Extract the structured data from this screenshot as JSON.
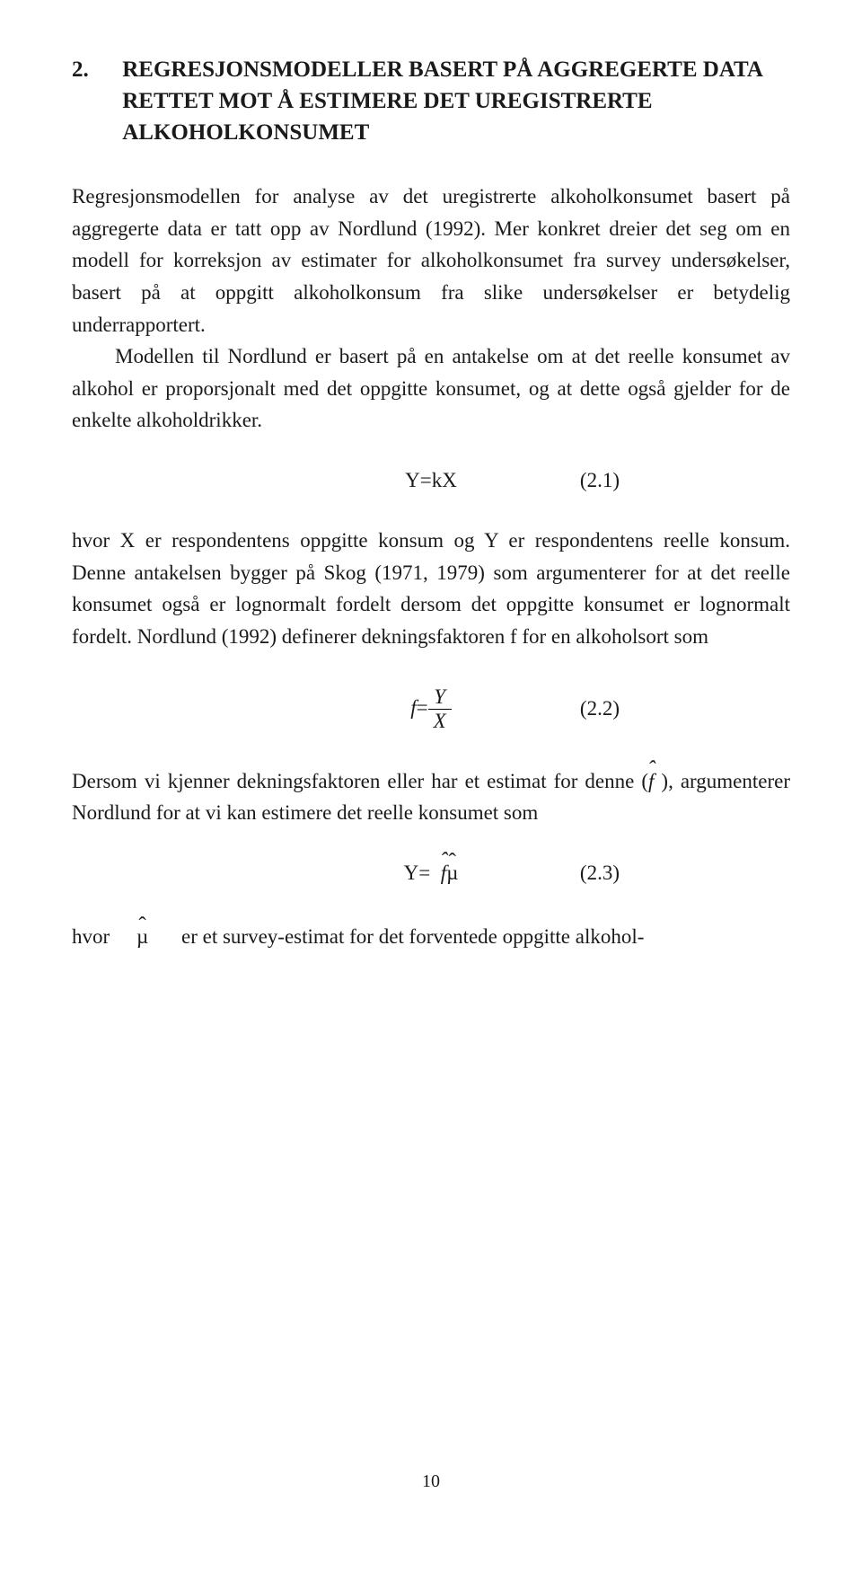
{
  "heading": {
    "number": "2.",
    "title": "REGRESJONSMODELLER BASERT PÅ AGGREGERTE DATA RETTET MOT Å ESTIMERE DET UREGISTRERTE ALKOHOLKONSUMET"
  },
  "para1a": "Regresjonsmodellen for analyse av det uregistrerte alkoholkonsumet basert på aggregerte data er tatt opp av Nordlund (1992). Mer konkret dreier det seg om en modell for korreksjon av estimater for alkoholkonsumet fra survey undersøkelser, basert på at oppgitt alkoholkonsum fra slike undersøkelser er betydelig underrapportert.",
  "para1b": "Modellen til Nordlund er basert på en antakelse om at det reelle konsumet av alkohol er proporsjonalt med det oppgitte konsumet, og at dette også gjelder for de enkelte alkoholdrikker.",
  "eq1": {
    "expr": "Y=kX",
    "num": "(2.1)"
  },
  "para2": "hvor X er respondentens oppgitte konsum og Y er respondentens reelle konsum. Denne antakelsen bygger på Skog (1971, 1979) som argumenterer for at det reelle konsumet også er lognormalt fordelt dersom det oppgitte konsumet er lognormalt fordelt. Nordlund (1992) definerer dekningsfaktoren f for en alkoholsort som",
  "eq2": {
    "lhs": "f",
    "frac_num": "Y",
    "frac_den": "X",
    "num": "(2.2)"
  },
  "para3_pre": "Dersom vi kjenner dekningsfaktoren eller har et estimat for denne (",
  "para3_post": "), argumenterer Nordlund for at vi kan estimere det reelle konsumet som",
  "eq3": {
    "lhs": "Y= ",
    "num": "(2.3)"
  },
  "final": {
    "hvor": "hvor",
    "rest": "er et survey-estimat for det forventede oppgitte alkohol-"
  },
  "page_number": "10",
  "symbols": {
    "fhat": "f",
    "muhat": "µ"
  }
}
